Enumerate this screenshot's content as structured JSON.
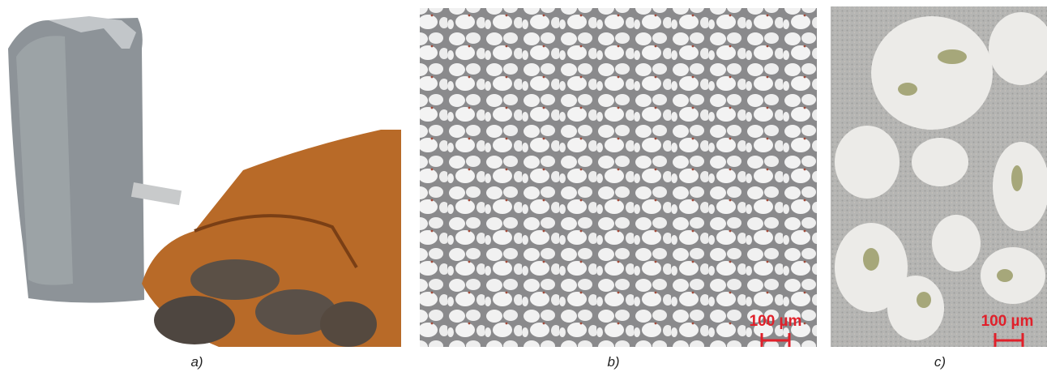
{
  "panels": [
    {
      "label": "a)"
    },
    {
      "label": "b)",
      "scale_bar": "100 µm"
    },
    {
      "label": "c)",
      "scale_bar": "100 µm"
    }
  ]
}
